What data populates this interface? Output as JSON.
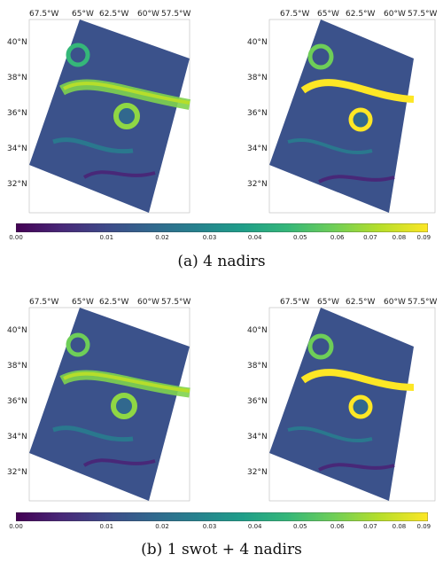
{
  "lon_labels": [
    "67.5°W",
    "65°W",
    "62.5°W",
    "60°W",
    "57.5°W"
  ],
  "lat_labels": [
    "40°N",
    "38°N",
    "36°N",
    "34°N",
    "32°N"
  ],
  "colorbar": {
    "ticks": [
      "0.00",
      "0.01",
      "0.02",
      "0.03",
      "0.04",
      "0.05",
      "0.06",
      "0.07",
      "0.08",
      "0.09"
    ],
    "colormap": [
      "#440154",
      "#482878",
      "#3e4a89",
      "#31688e",
      "#26828e",
      "#1f9e89",
      "#35b779",
      "#6ece58",
      "#b5de2b",
      "#fde725"
    ]
  },
  "captions": {
    "top": "(a)   4 nadirs",
    "bottom": "(b)   1 swot + 4 nadirs"
  }
}
